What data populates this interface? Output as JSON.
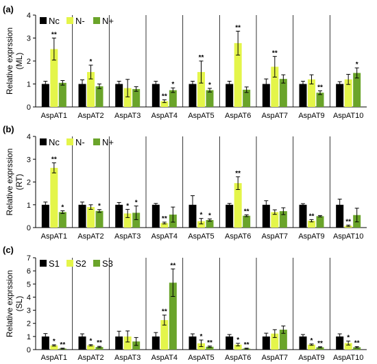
{
  "colors": {
    "c1": "#000000",
    "c2": "#e4f54a",
    "c3": "#6aa42a"
  },
  "chart_data": [
    {
      "type": "bar",
      "panel": "(a)",
      "ylabel": "Relative exprssion",
      "ysub": "(ML)",
      "ylim": [
        0,
        4
      ],
      "yticks": [
        "0",
        "1",
        "2",
        "3",
        "4"
      ],
      "legend": [
        "Nc",
        "N-",
        "N+"
      ],
      "legend_placement": "top-left",
      "categories": [
        "AspAT1",
        "AspAT2",
        "AspAT3",
        "AspAT4",
        "AspAT5",
        "AspAT6",
        "AspAT7",
        "AspAT9",
        "AspAT10"
      ],
      "series": [
        {
          "name": "Nc",
          "values": [
            1.0,
            1.0,
            1.0,
            1.0,
            1.0,
            1.0,
            1.0,
            1.0,
            1.0
          ],
          "errors": [
            0.12,
            0.18,
            0.12,
            0.12,
            0.12,
            0.12,
            0.22,
            0.12,
            0.1
          ],
          "sig": [
            "",
            "",
            "",
            "",
            "",
            "",
            "",
            "",
            ""
          ]
        },
        {
          "name": "N-",
          "values": [
            2.52,
            1.52,
            0.82,
            0.25,
            1.52,
            2.78,
            1.75,
            1.2,
            1.2
          ],
          "errors": [
            0.48,
            0.3,
            0.38,
            0.06,
            0.48,
            0.52,
            0.45,
            0.2,
            0.22
          ],
          "sig": [
            "**",
            "*",
            "",
            "**",
            "**",
            "**",
            "**",
            "",
            ""
          ]
        },
        {
          "name": "N+",
          "values": [
            1.05,
            0.9,
            0.78,
            0.73,
            0.73,
            0.75,
            1.22,
            0.62,
            1.48
          ],
          "errors": [
            0.1,
            0.1,
            0.1,
            0.1,
            0.08,
            0.12,
            0.18,
            0.08,
            0.22
          ],
          "sig": [
            "",
            "",
            "",
            "*",
            "*",
            "",
            "",
            "**",
            "*"
          ]
        }
      ]
    },
    {
      "type": "bar",
      "panel": "(b)",
      "ylabel": "Relative exprssion",
      "ysub": "(RT)",
      "ylim": [
        0,
        4
      ],
      "yticks": [
        "0",
        "1",
        "2",
        "3",
        "4"
      ],
      "legend": [
        "Nc",
        "N-",
        "N+"
      ],
      "legend_placement": "top-left",
      "categories": [
        "AspAT1",
        "AspAT2",
        "AspAT3",
        "AspAT4",
        "AspAT5",
        "AspAT6",
        "AspAT7",
        "AspAT9",
        "AspAT10"
      ],
      "series": [
        {
          "name": "Nc",
          "values": [
            1.0,
            1.0,
            1.0,
            1.0,
            1.0,
            1.0,
            1.0,
            1.0,
            1.0
          ],
          "errors": [
            0.12,
            0.12,
            0.1,
            0.06,
            0.4,
            0.06,
            0.18,
            0.05,
            0.25
          ],
          "sig": [
            "",
            "",
            "",
            "",
            "",
            "",
            "",
            "",
            ""
          ]
        },
        {
          "name": "N-",
          "values": [
            2.62,
            0.9,
            0.62,
            0.2,
            0.28,
            1.95,
            0.68,
            0.3,
            0.08
          ],
          "errors": [
            0.22,
            0.1,
            0.18,
            0.04,
            0.12,
            0.28,
            0.1,
            0.05,
            0.03
          ],
          "sig": [
            "**",
            "",
            "*",
            "**",
            "*",
            "**",
            "",
            "**",
            "**"
          ]
        },
        {
          "name": "N+",
          "values": [
            0.68,
            0.73,
            0.65,
            0.57,
            0.33,
            0.52,
            0.72,
            0.5,
            0.55
          ],
          "errors": [
            0.06,
            0.06,
            0.3,
            0.33,
            0.05,
            0.04,
            0.15,
            0.03,
            0.3
          ],
          "sig": [
            "*",
            "*",
            "*",
            "",
            "*",
            "**",
            "",
            "",
            ""
          ]
        }
      ]
    },
    {
      "type": "bar",
      "panel": "(c)",
      "ylabel": "Relative exprssion",
      "ysub": "(SL)",
      "ylim": [
        0,
        7
      ],
      "yticks": [
        "0",
        "1",
        "2",
        "3",
        "4",
        "5",
        "6",
        "7"
      ],
      "legend": [
        "S1",
        "S2",
        "S3"
      ],
      "legend_placement": "top-left",
      "categories": [
        "AspAT1",
        "AspAT2",
        "AspAT3",
        "AspAT4",
        "AspAT5",
        "AspAT6",
        "AspAT7",
        "AspAT9",
        "AspAT10"
      ],
      "series": [
        {
          "name": "S1",
          "values": [
            1.0,
            1.0,
            1.0,
            1.0,
            1.0,
            1.0,
            1.0,
            1.0,
            1.0
          ],
          "errors": [
            0.22,
            0.2,
            0.4,
            0.3,
            0.2,
            0.15,
            0.25,
            0.15,
            0.2
          ],
          "sig": [
            "",
            "",
            "",
            "",
            "",
            "",
            "",
            "",
            ""
          ]
        },
        {
          "name": "S2",
          "values": [
            0.32,
            0.33,
            1.0,
            2.25,
            0.48,
            0.38,
            1.22,
            0.38,
            0.5
          ],
          "errors": [
            0.05,
            0.05,
            0.42,
            0.38,
            0.25,
            0.1,
            0.3,
            0.05,
            0.15
          ],
          "sig": [
            "*",
            "*",
            "",
            "**",
            "*",
            "*",
            "",
            "*",
            "*"
          ]
        },
        {
          "name": "S3",
          "values": [
            0.08,
            0.2,
            0.62,
            5.1,
            0.22,
            0.08,
            1.52,
            0.18,
            0.18
          ],
          "errors": [
            0.03,
            0.05,
            0.3,
            1.05,
            0.05,
            0.03,
            0.28,
            0.04,
            0.05
          ],
          "sig": [
            "**",
            "**",
            "",
            "**",
            "**",
            "**",
            "",
            "**",
            "**"
          ]
        }
      ]
    }
  ]
}
